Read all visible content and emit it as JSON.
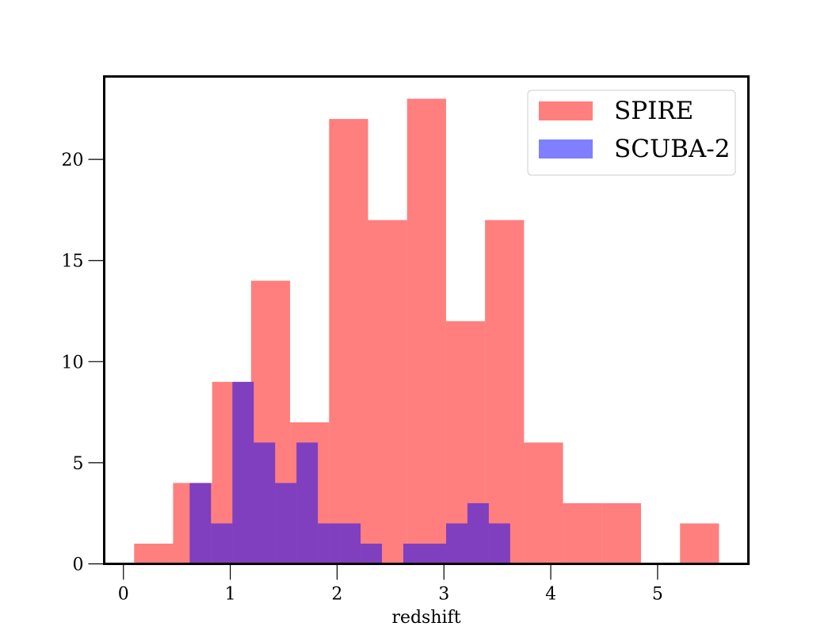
{
  "chart_data": {
    "type": "bar",
    "title": "",
    "xlabel": "redshift",
    "ylabel": "",
    "xlim": [
      -0.18,
      5.85
    ],
    "ylim": [
      0,
      24.1
    ],
    "xticks": [
      0,
      1,
      2,
      3,
      4,
      5
    ],
    "yticks": [
      0,
      5,
      10,
      15,
      20
    ],
    "grid": false,
    "legend_position": "top-right",
    "series": [
      {
        "name": "SPIRE",
        "color": "#ff0000",
        "opacity": 0.5,
        "bin_edges": [
          0.1,
          0.465,
          0.83,
          1.195,
          1.56,
          1.925,
          2.29,
          2.655,
          3.02,
          3.385,
          3.75,
          4.115,
          4.48,
          4.845,
          5.21,
          5.575
        ],
        "counts": [
          1,
          4,
          9,
          14,
          7,
          22,
          17,
          23,
          12,
          17,
          6,
          3,
          3,
          0,
          2
        ]
      },
      {
        "name": "SCUBA-2",
        "color": "#0000ff",
        "opacity": 0.5,
        "bin_edges": [
          0.62,
          0.82,
          1.02,
          1.22,
          1.42,
          1.62,
          1.82,
          2.02,
          2.22,
          2.42,
          2.62,
          2.82,
          3.02,
          3.22,
          3.42,
          3.62
        ],
        "counts": [
          4,
          2,
          9,
          6,
          4,
          6,
          2,
          2,
          1,
          0,
          1,
          1,
          2,
          3,
          2
        ]
      }
    ]
  }
}
